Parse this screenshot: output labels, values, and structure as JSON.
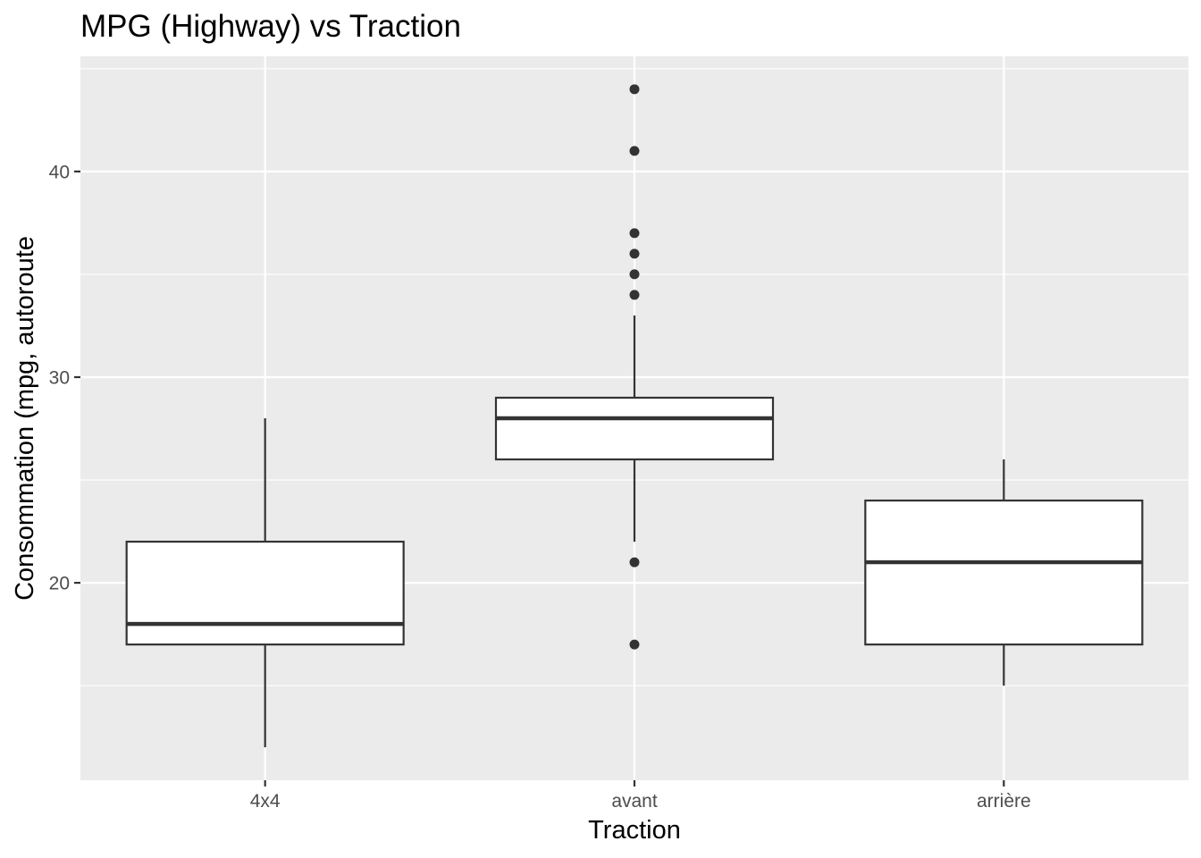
{
  "chart_data": {
    "type": "boxplot",
    "title": "MPG (Highway) vs Traction",
    "xlabel": "Traction",
    "ylabel": "Consommation (mpg, autoroute",
    "ylim": [
      10.4,
      45.6
    ],
    "yticks": [
      20,
      30,
      40
    ],
    "ytick_labels": [
      "20",
      "30",
      "40"
    ],
    "categories": [
      "4x4",
      "avant",
      "arrière"
    ],
    "boxes": [
      {
        "category": "4x4",
        "whisker_low": 12,
        "q1": 17,
        "median": 18,
        "q3": 22,
        "whisker_high": 28,
        "outliers": []
      },
      {
        "category": "avant",
        "whisker_low": 22,
        "q1": 26,
        "median": 28,
        "q3": 29,
        "whisker_high": 33,
        "outliers": [
          17,
          21,
          34,
          35,
          36,
          37,
          41,
          44
        ]
      },
      {
        "category": "arrière",
        "whisker_low": 15,
        "q1": 17,
        "median": 21,
        "q3": 24,
        "whisker_high": 26,
        "outliers": []
      }
    ],
    "grid": true,
    "colors": {
      "panel": "#ebebeb",
      "grid": "#ffffff",
      "box_fill": "#ffffff",
      "box_stroke": "#333333",
      "tick": "#333333"
    }
  }
}
